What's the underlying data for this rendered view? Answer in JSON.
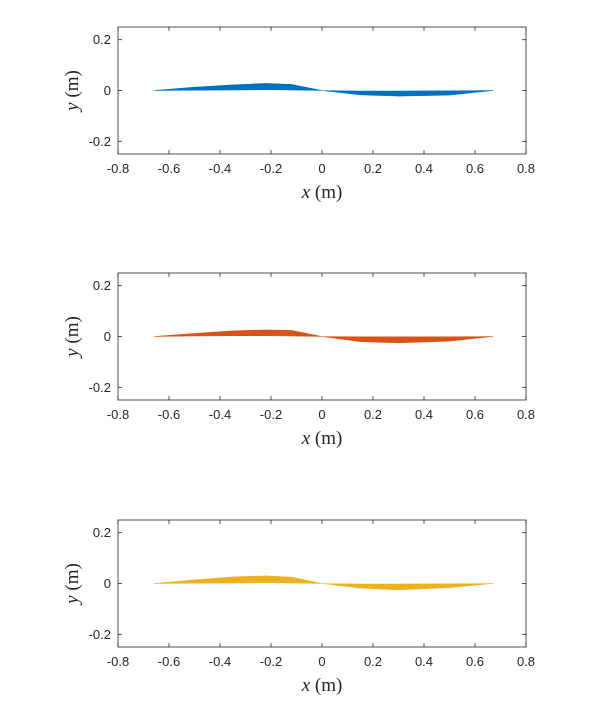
{
  "chart_data": [
    {
      "type": "area",
      "xlabel_var": "x",
      "xlabel_unit": "(m)",
      "ylabel_var": "y",
      "ylabel_unit": "(m)",
      "xlim": [
        -0.8,
        0.8
      ],
      "ylim": [
        -0.25,
        0.25
      ],
      "xticks": [
        "-0.8",
        "-0.6",
        "-0.4",
        "-0.2",
        "0",
        "0.2",
        "0.4",
        "0.6",
        "0.8"
      ],
      "yticks": [
        "0.2",
        "0",
        "-0.2"
      ],
      "color": "#0072BD",
      "upper": {
        "x": [
          -0.66,
          -0.5,
          -0.35,
          -0.22,
          -0.12,
          0.0,
          0.15,
          0.3,
          0.5,
          0.67
        ],
        "y": [
          0.0,
          0.013,
          0.022,
          0.028,
          0.024,
          0.0,
          -0.017,
          -0.022,
          -0.018,
          0.0
        ]
      },
      "lower": {
        "x": [
          -0.66,
          -0.5,
          -0.35,
          -0.22,
          -0.12,
          0.0,
          0.15,
          0.3,
          0.5,
          0.67
        ],
        "y": [
          0.0,
          0.001,
          0.002,
          0.003,
          0.002,
          0.0,
          -0.002,
          -0.002,
          -0.001,
          0.0
        ]
      }
    },
    {
      "type": "area",
      "xlabel_var": "x",
      "xlabel_unit": "(m)",
      "ylabel_var": "y",
      "ylabel_unit": "(m)",
      "xlim": [
        -0.8,
        0.8
      ],
      "ylim": [
        -0.25,
        0.25
      ],
      "xticks": [
        "-0.8",
        "-0.6",
        "-0.4",
        "-0.2",
        "0",
        "0.2",
        "0.4",
        "0.6",
        "0.8"
      ],
      "yticks": [
        "0.2",
        "0",
        "-0.2"
      ],
      "color": "#D95319",
      "upper": {
        "x": [
          -0.66,
          -0.5,
          -0.35,
          -0.22,
          -0.12,
          0.0,
          0.15,
          0.3,
          0.5,
          0.67
        ],
        "y": [
          0.0,
          0.012,
          0.022,
          0.026,
          0.024,
          0.0,
          -0.001,
          -0.001,
          -0.001,
          0.0
        ]
      },
      "lower": {
        "x": [
          -0.66,
          -0.5,
          -0.35,
          -0.22,
          -0.12,
          0.0,
          0.15,
          0.3,
          0.5,
          0.67
        ],
        "y": [
          0.0,
          0.002,
          0.003,
          0.003,
          0.002,
          0.0,
          -0.02,
          -0.025,
          -0.018,
          0.0
        ]
      }
    },
    {
      "type": "area",
      "xlabel_var": "x",
      "xlabel_unit": "(m)",
      "ylabel_var": "y",
      "ylabel_unit": "(m)",
      "xlim": [
        -0.8,
        0.8
      ],
      "ylim": [
        -0.25,
        0.25
      ],
      "xticks": [
        "-0.8",
        "-0.6",
        "-0.4",
        "-0.2",
        "0",
        "0.2",
        "0.4",
        "0.6",
        "0.8"
      ],
      "yticks": [
        "0.2",
        "0",
        "-0.2"
      ],
      "color": "#EDB120",
      "upper": {
        "x": [
          -0.66,
          -0.5,
          -0.35,
          -0.22,
          -0.12,
          0.0,
          0.15,
          0.3,
          0.5,
          0.67
        ],
        "y": [
          0.0,
          0.014,
          0.026,
          0.03,
          0.025,
          0.0,
          -0.002,
          -0.002,
          -0.001,
          0.0
        ]
      },
      "lower": {
        "x": [
          -0.66,
          -0.5,
          -0.35,
          -0.22,
          -0.12,
          0.0,
          0.15,
          0.3,
          0.5,
          0.67
        ],
        "y": [
          0.0,
          0.001,
          0.002,
          0.003,
          0.002,
          0.0,
          -0.018,
          -0.025,
          -0.016,
          0.0
        ]
      }
    }
  ]
}
